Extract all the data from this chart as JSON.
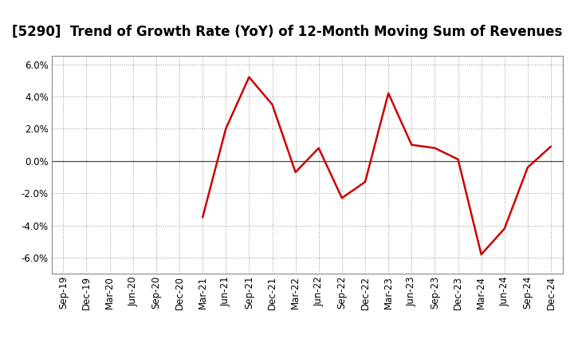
{
  "title": "[5290]  Trend of Growth Rate (YoY) of 12-Month Moving Sum of Revenues",
  "x_labels": [
    "Sep-19",
    "Dec-19",
    "Mar-20",
    "Jun-20",
    "Sep-20",
    "Dec-20",
    "Mar-21",
    "Jun-21",
    "Sep-21",
    "Dec-21",
    "Mar-22",
    "Jun-22",
    "Sep-22",
    "Dec-22",
    "Mar-23",
    "Jun-23",
    "Sep-23",
    "Dec-23",
    "Mar-24",
    "Jun-24",
    "Sep-24",
    "Dec-24"
  ],
  "y_values": [
    null,
    null,
    null,
    null,
    null,
    null,
    -0.035,
    0.02,
    0.052,
    0.035,
    -0.007,
    0.008,
    -0.023,
    -0.013,
    0.042,
    0.01,
    0.008,
    0.001,
    -0.058,
    -0.042,
    -0.004,
    0.009
  ],
  "line_color": "#CC0000",
  "line_width": 1.8,
  "ylim": [
    -0.07,
    0.065
  ],
  "yticks": [
    -0.06,
    -0.04,
    -0.02,
    0.0,
    0.02,
    0.04,
    0.06
  ],
  "background_color": "#ffffff",
  "header_color": "#ffffff",
  "plot_bg_color": "#ffffff",
  "grid_color": "#999999",
  "zero_line_color": "#444444",
  "title_fontsize": 12,
  "tick_fontsize": 8.5
}
